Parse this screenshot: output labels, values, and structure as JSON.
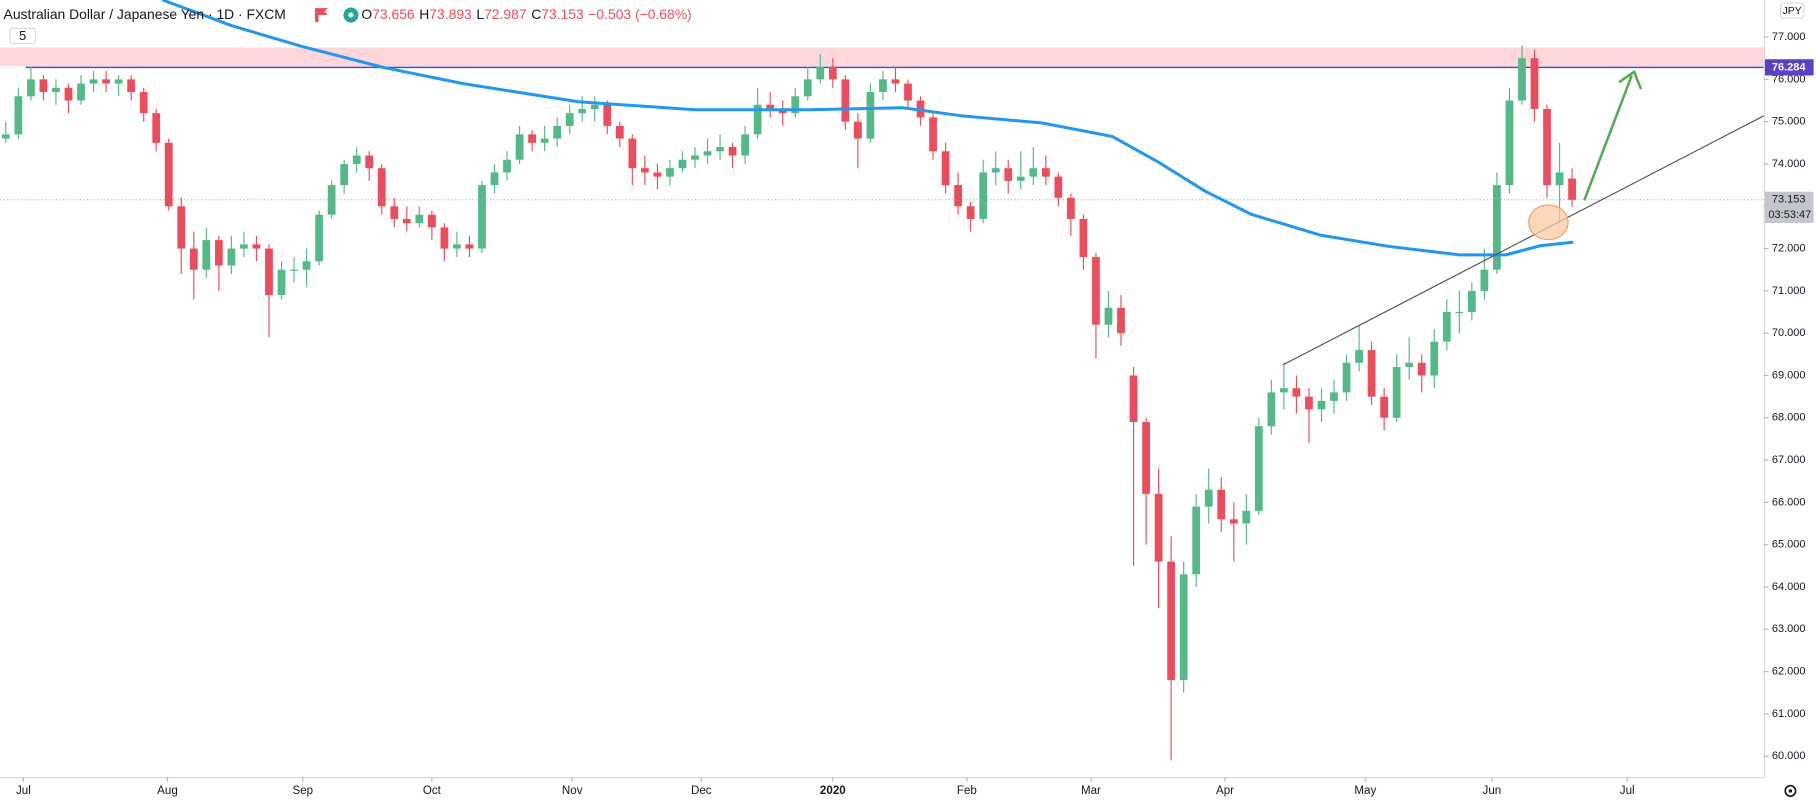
{
  "chart_data": {
    "type": "candlestick",
    "title": "Australian Dollar / Japanese Yen · 1D · FXCM",
    "interval_box": "5",
    "currency": "JPY",
    "ohlc_legend": [
      {
        "label": "O",
        "value": 73.656
      },
      {
        "label": "H",
        "value": 73.893
      },
      {
        "label": "L",
        "value": 72.987
      },
      {
        "label": "C",
        "value": 73.153
      }
    ],
    "change": "−0.503 (−0.68%)",
    "up_color": "#53b987",
    "down_color": "#eb4d5c",
    "xlim": [
      -0.46,
      140.3
    ],
    "ylim": [
      59.507,
      77.876
    ],
    "xticks": [
      {
        "value": 1.4,
        "label": "Jul"
      },
      {
        "value": 12.9,
        "label": "Aug"
      },
      {
        "value": 23.7,
        "label": "Sep"
      },
      {
        "value": 34.0,
        "label": "Oct"
      },
      {
        "value": 45.2,
        "label": "Nov"
      },
      {
        "value": 55.5,
        "label": "Dec"
      },
      {
        "value": 66.0,
        "label": "2020"
      },
      {
        "value": 76.7,
        "label": "Feb"
      },
      {
        "value": 86.6,
        "label": "Mar"
      },
      {
        "value": 97.3,
        "label": "Apr"
      },
      {
        "value": 108.5,
        "label": "May"
      },
      {
        "value": 118.6,
        "label": "Jun"
      },
      {
        "value": 129.4,
        "label": "Jul"
      }
    ],
    "yticks": [
      {
        "value": 60,
        "label": "60.000"
      },
      {
        "value": 61,
        "label": "61.000"
      },
      {
        "value": 62,
        "label": "62.000"
      },
      {
        "value": 63,
        "label": "63.000"
      },
      {
        "value": 64,
        "label": "64.000"
      },
      {
        "value": 65,
        "label": "65.000"
      },
      {
        "value": 66,
        "label": "66.000"
      },
      {
        "value": 67,
        "label": "67.000"
      },
      {
        "value": 68,
        "label": "68.000"
      },
      {
        "value": 69,
        "label": "69.000"
      },
      {
        "value": 70,
        "label": "70.000"
      },
      {
        "value": 71,
        "label": "71.000"
      },
      {
        "value": 72,
        "label": "72.000"
      },
      {
        "value": 73,
        "label": "73.000"
      },
      {
        "value": 74,
        "label": "74.000"
      },
      {
        "value": 75,
        "label": "75.000"
      },
      {
        "value": 76,
        "label": "76.000"
      },
      {
        "value": 77,
        "label": "77.000"
      }
    ],
    "ohlc": [
      [
        74.6,
        75.0,
        74.5,
        74.7
      ],
      [
        74.7,
        75.8,
        74.6,
        75.6
      ],
      [
        75.6,
        76.3,
        75.5,
        76.0
      ],
      [
        76.0,
        76.1,
        75.5,
        75.7
      ],
      [
        75.7,
        76.0,
        75.4,
        75.8
      ],
      [
        75.8,
        75.9,
        75.2,
        75.5
      ],
      [
        75.5,
        76.1,
        75.4,
        75.9
      ],
      [
        75.9,
        76.2,
        75.7,
        76.0
      ],
      [
        76.0,
        76.2,
        75.7,
        75.9
      ],
      [
        75.9,
        76.1,
        75.6,
        76.0
      ],
      [
        76.0,
        76.1,
        75.5,
        75.7
      ],
      [
        75.7,
        75.8,
        75.0,
        75.2
      ],
      [
        75.2,
        75.3,
        74.3,
        74.5
      ],
      [
        74.5,
        74.6,
        72.9,
        73.0
      ],
      [
        73.0,
        73.2,
        71.4,
        72.0
      ],
      [
        72.0,
        72.4,
        70.8,
        71.5
      ],
      [
        71.5,
        72.5,
        71.3,
        72.2
      ],
      [
        72.2,
        72.3,
        71.0,
        71.6
      ],
      [
        71.6,
        72.3,
        71.4,
        72.0
      ],
      [
        72.0,
        72.4,
        71.8,
        72.1
      ],
      [
        72.1,
        72.3,
        71.7,
        72.0
      ],
      [
        72.0,
        72.1,
        69.9,
        70.9
      ],
      [
        70.9,
        71.7,
        70.8,
        71.5
      ],
      [
        71.5,
        71.8,
        71.2,
        71.5
      ],
      [
        71.5,
        72.0,
        71.1,
        71.7
      ],
      [
        71.7,
        72.9,
        71.6,
        72.8
      ],
      [
        72.8,
        73.6,
        72.7,
        73.5
      ],
      [
        73.5,
        74.1,
        73.3,
        74.0
      ],
      [
        74.0,
        74.4,
        73.8,
        74.2
      ],
      [
        74.2,
        74.3,
        73.6,
        73.9
      ],
      [
        73.9,
        74.0,
        72.8,
        73.0
      ],
      [
        73.0,
        73.2,
        72.5,
        72.7
      ],
      [
        72.7,
        73.0,
        72.4,
        72.6
      ],
      [
        72.6,
        73.0,
        72.5,
        72.8
      ],
      [
        72.8,
        72.9,
        72.2,
        72.5
      ],
      [
        72.5,
        72.6,
        71.7,
        72.0
      ],
      [
        72.0,
        72.4,
        71.8,
        72.1
      ],
      [
        72.1,
        72.3,
        71.8,
        72.0
      ],
      [
        72.0,
        73.6,
        71.9,
        73.5
      ],
      [
        73.5,
        74.0,
        73.3,
        73.8
      ],
      [
        73.8,
        74.3,
        73.6,
        74.1
      ],
      [
        74.1,
        74.9,
        74.0,
        74.7
      ],
      [
        74.7,
        74.8,
        74.3,
        74.5
      ],
      [
        74.5,
        74.9,
        74.3,
        74.6
      ],
      [
        74.6,
        75.1,
        74.4,
        74.9
      ],
      [
        74.9,
        75.4,
        74.7,
        75.2
      ],
      [
        75.2,
        75.6,
        75.0,
        75.3
      ],
      [
        75.3,
        75.6,
        75.0,
        75.4
      ],
      [
        75.4,
        75.5,
        74.7,
        74.9
      ],
      [
        74.9,
        75.0,
        74.4,
        74.6
      ],
      [
        74.6,
        74.7,
        73.5,
        73.9
      ],
      [
        73.9,
        74.2,
        73.5,
        73.8
      ],
      [
        73.8,
        74.0,
        73.4,
        73.7
      ],
      [
        73.7,
        74.1,
        73.5,
        73.9
      ],
      [
        73.9,
        74.3,
        73.8,
        74.1
      ],
      [
        74.1,
        74.4,
        73.9,
        74.2
      ],
      [
        74.2,
        74.6,
        74.0,
        74.3
      ],
      [
        74.3,
        74.7,
        74.1,
        74.4
      ],
      [
        74.4,
        74.5,
        73.9,
        74.2
      ],
      [
        74.2,
        74.9,
        74.0,
        74.7
      ],
      [
        74.7,
        75.8,
        74.6,
        75.4
      ],
      [
        75.4,
        75.7,
        75.1,
        75.3
      ],
      [
        75.3,
        75.5,
        74.9,
        75.2
      ],
      [
        75.2,
        75.8,
        75.1,
        75.6
      ],
      [
        75.6,
        76.3,
        75.5,
        76.0
      ],
      [
        76.0,
        76.6,
        75.9,
        76.3
      ],
      [
        76.3,
        76.5,
        75.8,
        76.0
      ],
      [
        76.0,
        76.1,
        74.8,
        75.0
      ],
      [
        75.0,
        75.2,
        73.9,
        74.6
      ],
      [
        74.6,
        75.9,
        74.5,
        75.7
      ],
      [
        75.7,
        76.2,
        75.5,
        76.0
      ],
      [
        76.0,
        76.3,
        75.7,
        75.9
      ],
      [
        75.9,
        76.0,
        75.3,
        75.5
      ],
      [
        75.5,
        75.6,
        74.9,
        75.1
      ],
      [
        75.1,
        75.2,
        74.1,
        74.3
      ],
      [
        74.3,
        74.5,
        73.3,
        73.5
      ],
      [
        73.5,
        73.8,
        72.8,
        73.0
      ],
      [
        73.0,
        73.1,
        72.4,
        72.7
      ],
      [
        72.7,
        74.1,
        72.6,
        73.8
      ],
      [
        73.8,
        74.3,
        73.5,
        73.9
      ],
      [
        73.9,
        74.1,
        73.3,
        73.6
      ],
      [
        73.6,
        74.3,
        73.4,
        73.7
      ],
      [
        73.7,
        74.4,
        73.5,
        73.9
      ],
      [
        73.9,
        74.2,
        73.5,
        73.7
      ],
      [
        73.7,
        73.8,
        73.0,
        73.2
      ],
      [
        73.2,
        73.3,
        72.3,
        72.7
      ],
      [
        72.7,
        72.8,
        71.5,
        71.8
      ],
      [
        71.8,
        71.9,
        69.4,
        70.2
      ],
      [
        70.2,
        71.0,
        69.9,
        70.6
      ],
      [
        70.6,
        70.9,
        69.7,
        70.0
      ],
      [
        69.0,
        69.2,
        64.5,
        67.9
      ],
      [
        67.9,
        68.0,
        65.0,
        66.2
      ],
      [
        66.2,
        66.8,
        63.5,
        64.6
      ],
      [
        64.6,
        65.2,
        59.9,
        61.8
      ],
      [
        61.8,
        64.6,
        61.5,
        64.3
      ],
      [
        64.3,
        66.2,
        64.0,
        65.9
      ],
      [
        65.9,
        66.8,
        65.5,
        66.3
      ],
      [
        66.3,
        66.6,
        65.3,
        65.6
      ],
      [
        65.6,
        66.0,
        64.6,
        65.5
      ],
      [
        65.5,
        66.2,
        65.0,
        65.8
      ],
      [
        65.8,
        68.0,
        65.7,
        67.8
      ],
      [
        67.8,
        68.9,
        67.6,
        68.6
      ],
      [
        68.6,
        69.3,
        68.2,
        68.7
      ],
      [
        68.7,
        69.0,
        68.1,
        68.5
      ],
      [
        68.5,
        68.7,
        67.4,
        68.2
      ],
      [
        68.2,
        68.7,
        67.9,
        68.4
      ],
      [
        68.4,
        68.9,
        68.1,
        68.6
      ],
      [
        68.6,
        69.5,
        68.4,
        69.3
      ],
      [
        69.3,
        70.2,
        69.1,
        69.6
      ],
      [
        69.6,
        69.8,
        68.3,
        68.5
      ],
      [
        68.5,
        68.7,
        67.7,
        68.0
      ],
      [
        68.0,
        69.5,
        67.9,
        69.2
      ],
      [
        69.2,
        69.9,
        68.9,
        69.3
      ],
      [
        69.3,
        69.5,
        68.6,
        69.0
      ],
      [
        69.0,
        70.1,
        68.7,
        69.8
      ],
      [
        69.8,
        70.8,
        69.6,
        70.5
      ],
      [
        70.5,
        71.0,
        70.0,
        70.5
      ],
      [
        70.5,
        71.2,
        70.3,
        71.0
      ],
      [
        71.0,
        72.0,
        70.8,
        71.5
      ],
      [
        71.5,
        73.8,
        71.4,
        73.5
      ],
      [
        73.5,
        75.8,
        73.3,
        75.5
      ],
      [
        75.5,
        76.8,
        75.4,
        76.5
      ],
      [
        76.5,
        76.7,
        75.0,
        75.3
      ],
      [
        75.3,
        75.4,
        73.2,
        73.5
      ],
      [
        73.5,
        74.5,
        72.6,
        73.8
      ],
      [
        73.656,
        73.893,
        72.987,
        73.153
      ]
    ],
    "series": [
      {
        "color": "#2196f3",
        "x": [
          12.5,
          18.0,
          23.6,
          30.0,
          36.5,
          45.7,
          55.0,
          64.2,
          71.6,
          76.2,
          82.7,
          88.3,
          92.0,
          95.7,
          99.4,
          104.9,
          110.4,
          116.0,
          119.7,
          122.5,
          125.1
        ],
        "values": [
          77.88,
          77.27,
          76.78,
          76.29,
          75.9,
          75.47,
          75.28,
          75.28,
          75.33,
          75.14,
          74.97,
          74.65,
          74.04,
          73.36,
          72.81,
          72.32,
          72.05,
          71.85,
          71.85,
          72.07,
          72.15
        ]
      }
    ],
    "resistance_line": {
      "value": 76.284,
      "color": "#5b3fc4"
    },
    "last_price": 73.153,
    "countdown": "03:53:47"
  }
}
